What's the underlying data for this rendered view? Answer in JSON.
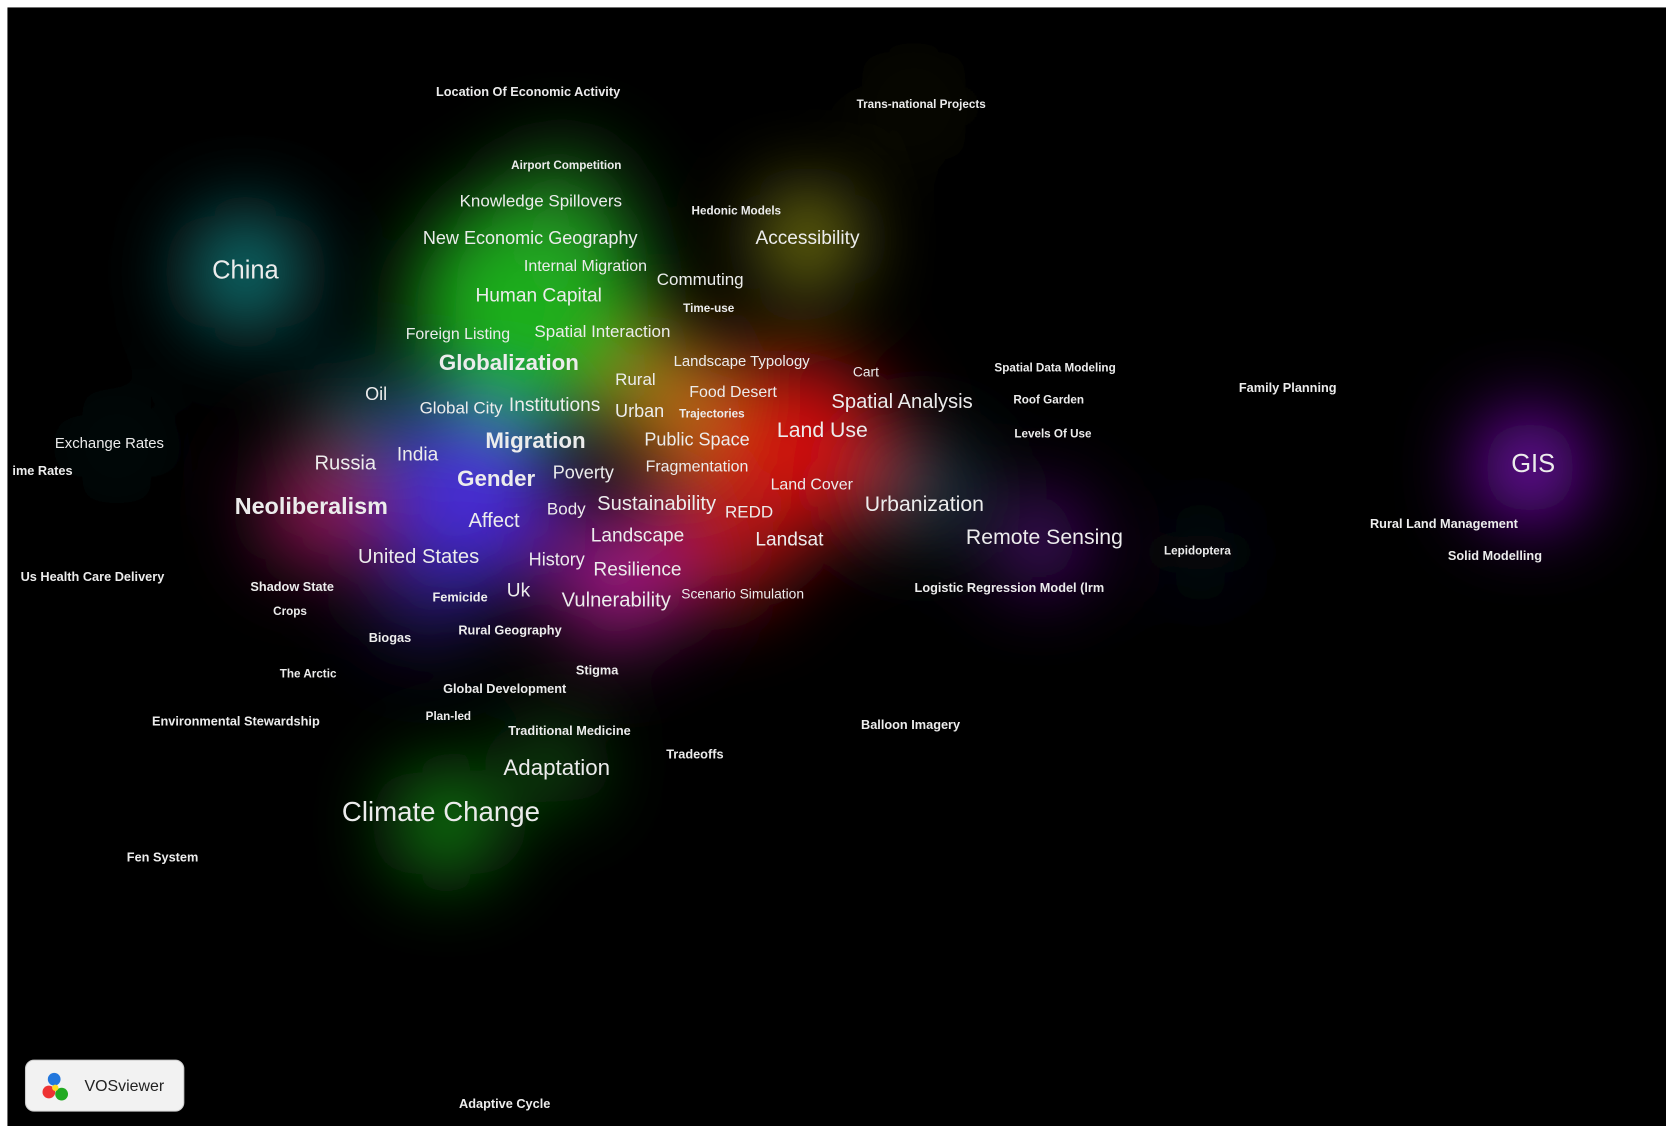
{
  "terms": [
    "Location Of Economic Activity",
    "Trans-national Projects",
    "Airport Competition",
    "Knowledge Spillovers",
    "Hedonic Models",
    "New Economic Geography",
    "Accessibility",
    "China",
    "Internal Migration",
    "Commuting",
    "Human Capital",
    "Time-use",
    "Foreign Listing",
    "Spatial Interaction",
    "Landscape Typology",
    "Globalization",
    "Cart",
    "Spatial Data Modeling",
    "Rural",
    "Family Planning",
    "Oil",
    "Food Desert",
    "Global City",
    "Institutions",
    "Urban",
    "Trajectories",
    "Spatial Analysis",
    "Roof Garden",
    "Exchange Rates",
    "Migration",
    "Public Space",
    "Land Use",
    "Levels Of Use",
    "ime Rates",
    "Russia",
    "India",
    "Fragmentation",
    "GIS",
    "Gender",
    "Poverty",
    "Land Cover",
    "Neoliberalism",
    "Sustainability",
    "Urbanization",
    "Affect",
    "Body",
    "REDD",
    "Rural Land Management",
    "Landscape",
    "Landsat",
    "Remote Sensing",
    "Lepidoptera",
    "Solid Modelling",
    "United States",
    "History",
    "Resilience",
    "Us Health Care Delivery",
    "Shadow State",
    "Logistic Regression Model (lrm",
    "Femicide",
    "Uk",
    "Vulnerability",
    "Scenario Simulation",
    "Crops",
    "Rural Geography",
    "Biogas",
    "Stigma",
    "The Arctic",
    "Global Development",
    "Environmental Stewardship",
    "Plan-led",
    "Balloon Imagery",
    "Traditional Medicine",
    "Tradeoffs",
    "Adaptation",
    "Climate Change",
    "Fen System",
    "Adaptive Cycle"
  ],
  "logo": {
    "text": "VOSviewer"
  }
}
